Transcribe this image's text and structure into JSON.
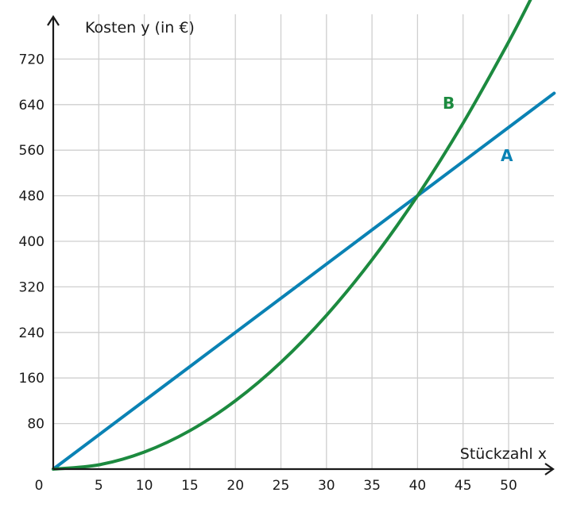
{
  "chart_data": {
    "type": "line",
    "xlabel": "Stückzahl x",
    "ylabel": "Kosten y (in €)",
    "origin_label": "0",
    "xlim": [
      0,
      55
    ],
    "ylim": [
      0,
      800
    ],
    "x_ticks": [
      5,
      10,
      15,
      20,
      25,
      30,
      35,
      40,
      45,
      50
    ],
    "y_ticks": [
      80,
      160,
      240,
      320,
      400,
      480,
      560,
      640,
      720
    ],
    "grid": true,
    "series": [
      {
        "name": "A",
        "color": "#0a82b4",
        "x": [
          0,
          5,
          10,
          15,
          20,
          25,
          30,
          35,
          40,
          45,
          50,
          55
        ],
        "y": [
          0,
          60,
          120,
          180,
          240,
          300,
          360,
          420,
          480,
          540,
          600,
          660
        ]
      },
      {
        "name": "B",
        "color": "#1c8a3f",
        "x": [
          0,
          5,
          10,
          15,
          20,
          25,
          30,
          35,
          40,
          45,
          50,
          52.9
        ],
        "y": [
          0,
          7.5,
          30,
          67.5,
          120,
          187.5,
          270,
          367.5,
          480,
          607.5,
          750,
          840
        ]
      }
    ]
  }
}
